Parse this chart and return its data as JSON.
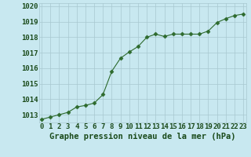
{
  "x": [
    0,
    1,
    2,
    3,
    4,
    5,
    6,
    7,
    8,
    9,
    10,
    11,
    12,
    13,
    14,
    15,
    16,
    17,
    18,
    19,
    20,
    21,
    22,
    23
  ],
  "y": [
    1012.7,
    1012.85,
    1013.0,
    1013.15,
    1013.5,
    1013.6,
    1013.75,
    1014.3,
    1015.8,
    1016.65,
    1017.05,
    1017.4,
    1018.0,
    1018.2,
    1018.05,
    1018.2,
    1018.2,
    1018.2,
    1018.2,
    1018.4,
    1018.95,
    1019.2,
    1019.4,
    1019.5
  ],
  "line_color": "#2d6a2d",
  "marker_color": "#2d6a2d",
  "bg_color": "#c8e8f0",
  "grid_color": "#a8c8d0",
  "xlabel": "Graphe pression niveau de la mer (hPa)",
  "xlabel_color": "#1a4a1a",
  "xlabel_fontsize": 7.5,
  "tick_label_color": "#1a4a1a",
  "tick_fontsize": 6.5,
  "ylim": [
    1012.5,
    1020.2
  ],
  "yticks": [
    1013,
    1014,
    1015,
    1016,
    1017,
    1018,
    1019,
    1020
  ],
  "xlim": [
    -0.3,
    23.3
  ],
  "xticks": [
    0,
    1,
    2,
    3,
    4,
    5,
    6,
    7,
    8,
    9,
    10,
    11,
    12,
    13,
    14,
    15,
    16,
    17,
    18,
    19,
    20,
    21,
    22,
    23
  ]
}
